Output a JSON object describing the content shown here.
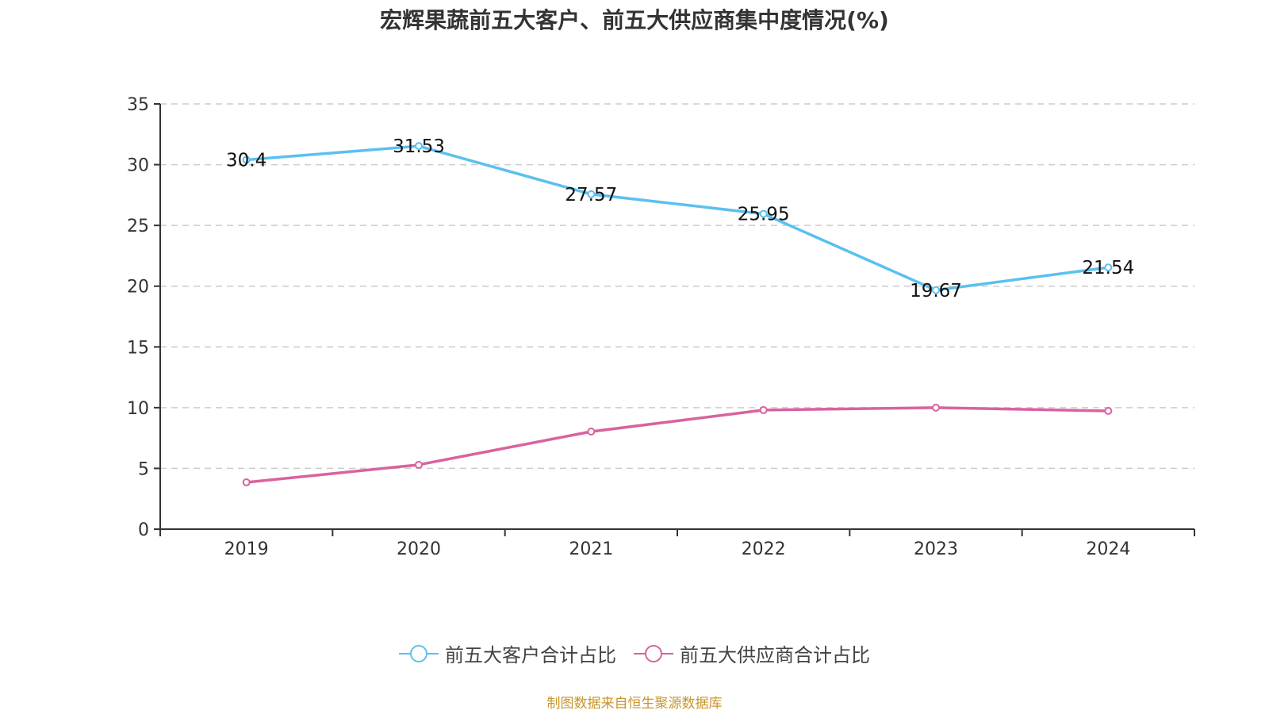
{
  "chart_data": {
    "type": "line",
    "title": "宏辉果蔬前五大客户、前五大供应商集中度情况(%)",
    "xlabel": "",
    "ylabel": "",
    "categories": [
      "2019",
      "2020",
      "2021",
      "2022",
      "2023",
      "2024"
    ],
    "ylim": [
      0,
      35
    ],
    "yticks": [
      0,
      5,
      10,
      15,
      20,
      25,
      30,
      35
    ],
    "grid": true,
    "legend_position": "bottom",
    "series": [
      {
        "name": "前五大客户合计占比",
        "color": "#5bc0f0",
        "values": [
          30.4,
          31.53,
          27.57,
          25.95,
          19.67,
          21.54
        ],
        "labels": [
          "30.4",
          "31.53",
          "27.57",
          "25.95",
          "19.67",
          "21.54"
        ],
        "show_labels": true
      },
      {
        "name": "前五大供应商合计占比",
        "color": "#d9629f",
        "values": [
          3.85,
          5.3,
          8.03,
          9.8,
          10.0,
          9.73
        ],
        "show_labels": false
      }
    ]
  },
  "footer": {
    "source": "制图数据来自恒生聚源数据库"
  }
}
